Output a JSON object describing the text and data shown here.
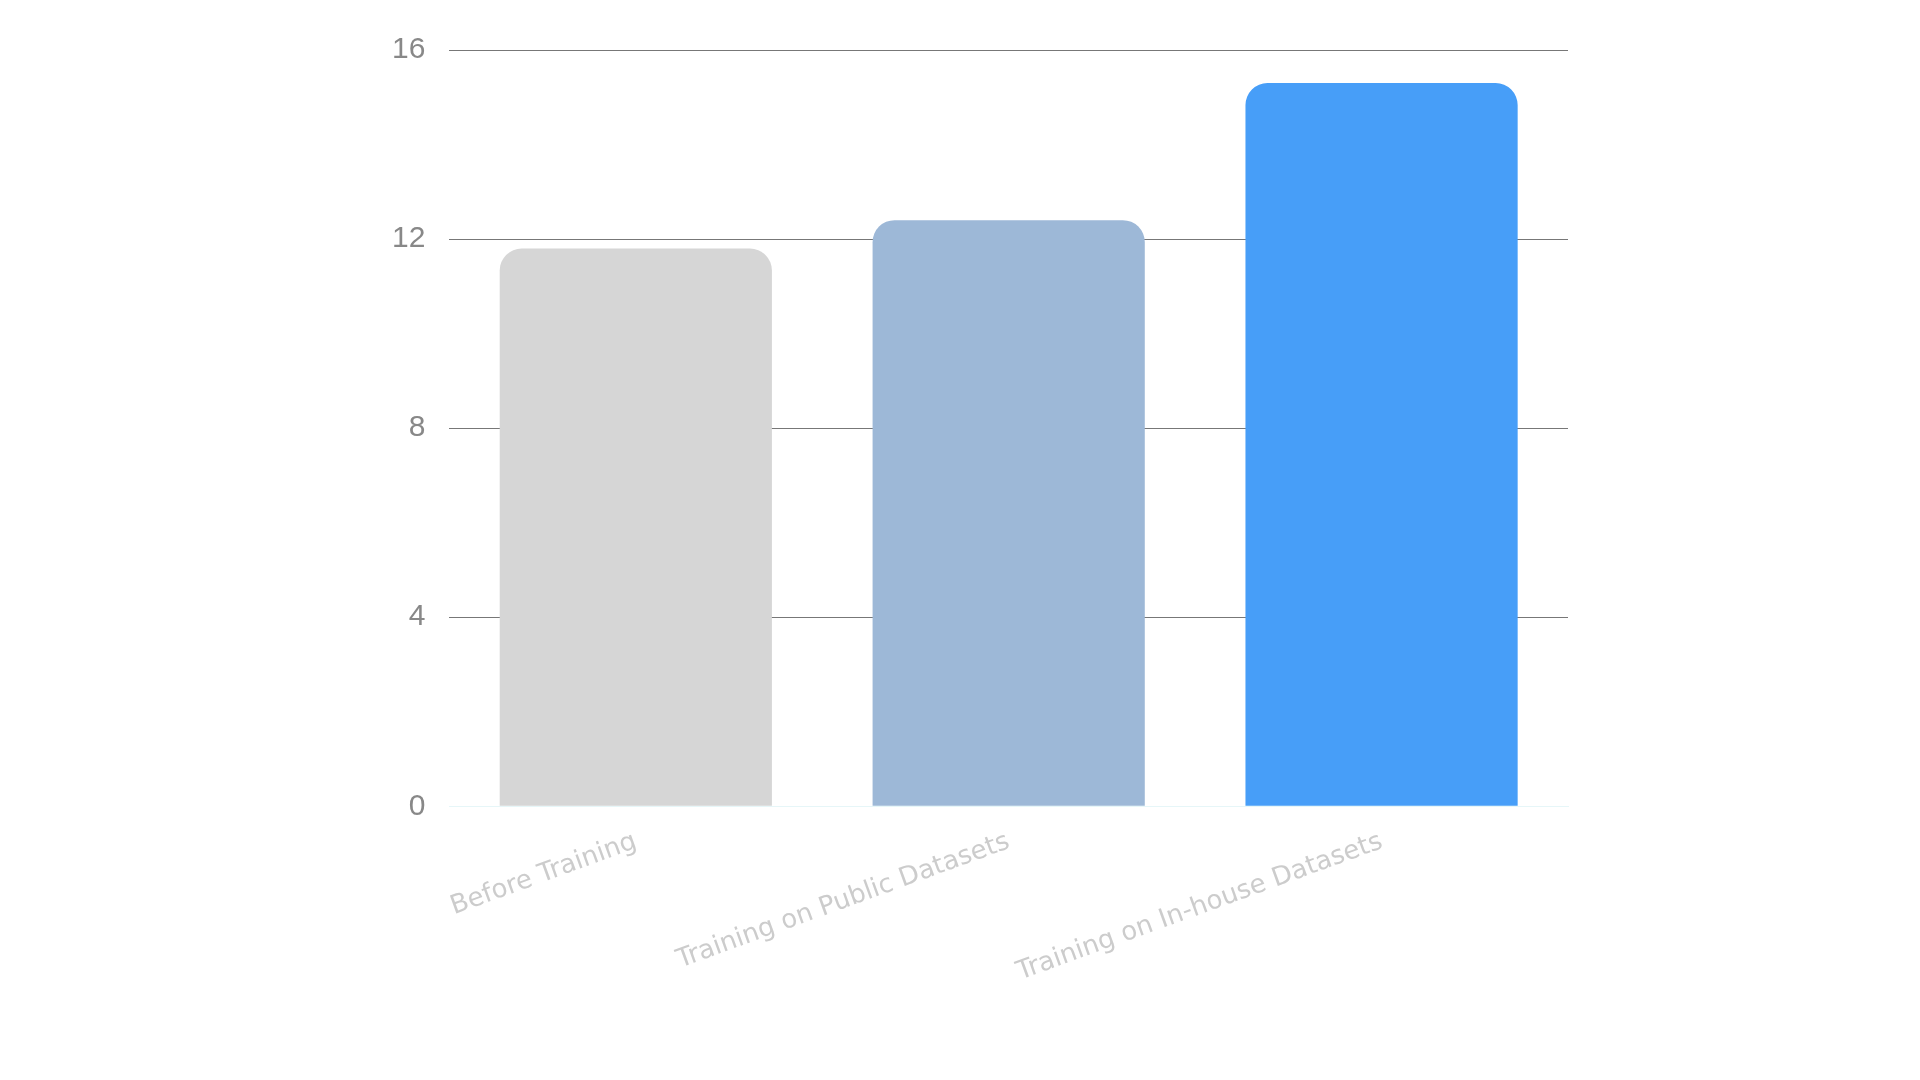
{
  "chart_data": {
    "type": "bar",
    "categories": [
      "Before Training",
      "Training on Public Datasets",
      "Training on In-house Datasets"
    ],
    "values": [
      11.8,
      12.4,
      15.3
    ],
    "colors": [
      "#d6d6d6",
      "#9db8d7",
      "#479ef8"
    ],
    "ylim": [
      0,
      16
    ],
    "yticks": [
      0,
      4,
      8,
      12,
      16
    ],
    "grid": "y",
    "legend": false
  }
}
